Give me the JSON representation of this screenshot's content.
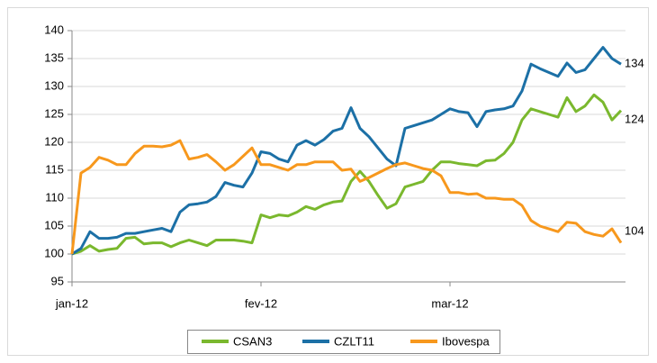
{
  "chart_data": {
    "type": "line",
    "categories": [
      "jan-12",
      null,
      null,
      null,
      null,
      null,
      null,
      null,
      null,
      null,
      null,
      null,
      null,
      null,
      null,
      null,
      null,
      null,
      null,
      null,
      null,
      "fev-12",
      null,
      null,
      null,
      null,
      null,
      null,
      null,
      null,
      null,
      null,
      null,
      null,
      null,
      null,
      null,
      null,
      null,
      null,
      null,
      null,
      "mar-12",
      null,
      null,
      null,
      null,
      null,
      null,
      null,
      null,
      null,
      null,
      null,
      null,
      null,
      null,
      null,
      null,
      null,
      null,
      null
    ],
    "series": [
      {
        "name": "CSAN3",
        "color": "#7ab82e",
        "values": [
          100,
          100.5,
          101.5,
          100.5,
          100.8,
          101,
          102.8,
          103,
          101.8,
          102,
          102,
          101.3,
          102,
          102.5,
          102,
          101.5,
          102.5,
          102.5,
          102.5,
          102.3,
          102,
          107,
          106.5,
          107,
          106.8,
          107.5,
          108.5,
          108,
          108.8,
          109.3,
          109.5,
          113,
          114.8,
          113,
          110.5,
          108.2,
          109,
          112,
          112.5,
          113,
          115,
          116.5,
          116.5,
          116.2,
          116,
          115.8,
          116.7,
          116.8,
          118,
          120,
          124,
          126,
          125.5,
          125,
          124.5,
          128,
          125.5,
          126.5,
          128.5,
          127.2,
          124,
          125.7
        ]
      },
      {
        "name": "CZLT11",
        "color": "#1c70a6",
        "values": [
          100,
          101,
          104,
          102.8,
          102.8,
          103,
          103.7,
          103.7,
          104,
          104.3,
          104.6,
          104,
          107.5,
          108.8,
          109,
          109.3,
          110.3,
          112.8,
          112.3,
          112,
          114.5,
          118.3,
          118,
          117,
          116.5,
          119.5,
          120.3,
          119.5,
          120.5,
          122,
          122.5,
          126.2,
          122.5,
          121,
          119,
          117,
          115.8,
          122.5,
          123,
          123.5,
          124,
          125,
          126,
          125.5,
          125.3,
          122.8,
          125.5,
          125.8,
          126,
          126.5,
          129.2,
          134,
          133.2,
          132.5,
          131.8,
          134.2,
          132.5,
          133,
          135,
          137,
          135,
          134
        ]
      },
      {
        "name": "Ibovespa",
        "color": "#f7981d",
        "values": [
          100,
          114.5,
          115.5,
          117.3,
          116.8,
          116,
          116,
          118,
          119.3,
          119.3,
          119.2,
          119.5,
          120.3,
          117,
          117.3,
          117.8,
          116.5,
          115,
          116,
          117.5,
          119,
          116,
          116,
          115.5,
          115,
          116,
          116,
          116.5,
          116.5,
          116.5,
          115,
          115.2,
          113,
          113.7,
          114.5,
          115.3,
          116,
          116.3,
          115.8,
          115.3,
          115,
          114,
          111,
          111,
          110.7,
          110.8,
          110,
          110,
          109.8,
          109.8,
          108.7,
          106,
          105,
          104.5,
          104,
          105.7,
          105.5,
          104,
          103.5,
          103.2,
          104.5,
          102
        ]
      }
    ],
    "annotations": [
      {
        "text": "134",
        "y": 134
      },
      {
        "text": "124",
        "y": 124
      },
      {
        "text": "104",
        "y": 104
      }
    ],
    "ylim": [
      95,
      140
    ],
    "yticks": [
      95,
      100,
      105,
      110,
      115,
      120,
      125,
      130,
      135,
      140
    ],
    "grid": true,
    "legend": "bottom"
  }
}
